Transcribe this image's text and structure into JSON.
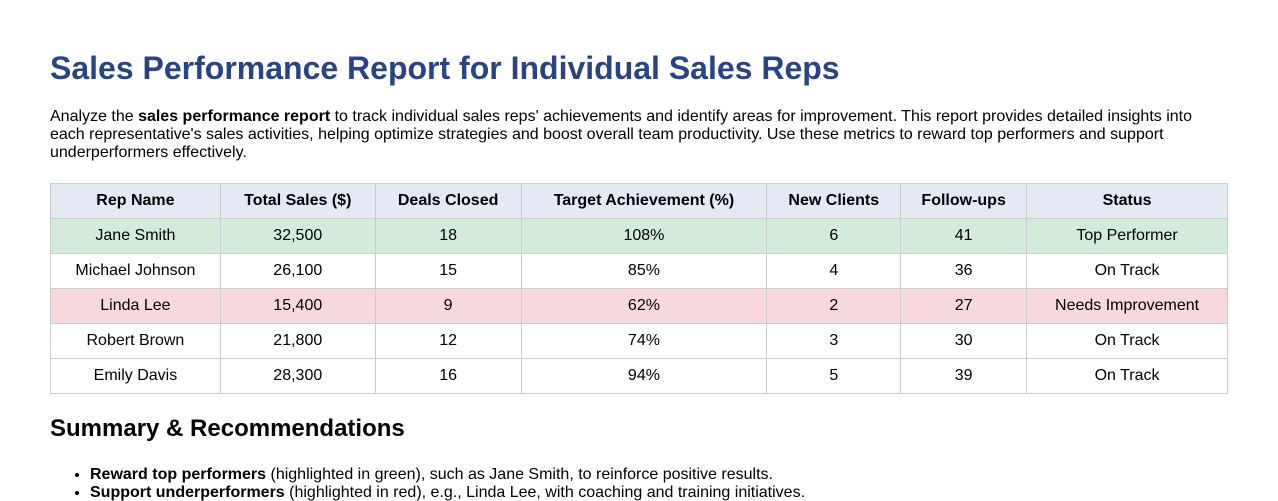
{
  "header": {
    "title": "Sales Performance Report for Individual Sales Reps"
  },
  "intro": [
    "Analyze the ",
    "sales performance report",
    " to track individual sales reps' achievements and identify areas for improvement. This report provides detailed insights into each representative's sales activities, helping optimize strategies and boost overall team productivity. Use these metrics to reward top performers and support underperformers effectively."
  ],
  "table": {
    "columns": [
      "Rep Name",
      "Total Sales ($)",
      "Deals Closed",
      "Target Achievement (%)",
      "New Clients",
      "Follow-ups",
      "Status"
    ],
    "rows": [
      [
        "Jane Smith",
        "32,500",
        "18",
        "108%",
        "6",
        "41",
        "Top Performer"
      ],
      [
        "Michael Johnson",
        "26,100",
        "15",
        "85%",
        "4",
        "36",
        "On Track"
      ],
      [
        "Linda Lee",
        "15,400",
        "9",
        "62%",
        "2",
        "27",
        "Needs Improvement"
      ],
      [
        "Robert Brown",
        "21,800",
        "12",
        "74%",
        "3",
        "30",
        "On Track"
      ],
      [
        "Emily Davis",
        "28,300",
        "16",
        "94%",
        "5",
        "39",
        "On Track"
      ]
    ]
  },
  "summary": {
    "title": "Summary & Recommendations",
    "items": [
      [
        "Reward top performers",
        " (highlighted in green), such as Jane Smith, to reinforce positive results."
      ],
      [
        "Support underperformers",
        " (highlighted in red), e.g., Linda Lee, with coaching and training initiatives."
      ]
    ]
  }
}
